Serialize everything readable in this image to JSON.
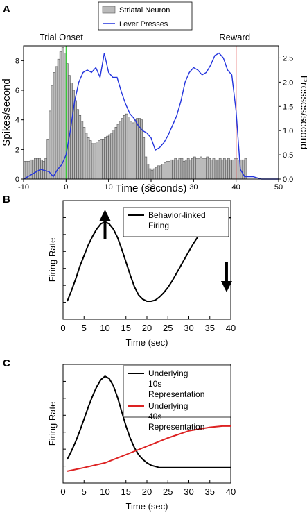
{
  "panels": [
    {
      "letter": "A"
    },
    {
      "letter": "B"
    },
    {
      "letter": "C"
    }
  ],
  "chart_data": [
    {
      "panel": "A",
      "type": "bar",
      "xlabel": "Time (seconds)",
      "ylabel": "Spikes/second",
      "y2label": "Presses/second",
      "xlim": [
        -10,
        50
      ],
      "ylim": [
        0,
        9
      ],
      "y2lim": [
        0,
        2.75
      ],
      "xticks": [
        "-10",
        "0",
        "10",
        "20",
        "30",
        "40",
        "50"
      ],
      "yticks": [
        "0",
        "2",
        "4",
        "6",
        "8"
      ],
      "y2ticks": [
        "0.0",
        "0.5",
        "1.0",
        "1.5",
        "2.0",
        "2.5"
      ],
      "legend_position": "top-center",
      "annotations": [
        {
          "text": "Trial Onset",
          "x": 0,
          "line_color": "#33cc33"
        },
        {
          "text": "Reward",
          "x": 40,
          "line_color": "#dd3333"
        }
      ],
      "series": [
        {
          "name": "Striatal Neuron",
          "kind": "bar",
          "color": "#bbbbbb",
          "bin_width": 1,
          "x_start": -10,
          "values": [
            1.2,
            1.2,
            1.2,
            1.3,
            1.3,
            1.4,
            1.4,
            1.4,
            1.3,
            1.2,
            1.4,
            2.7,
            4.6,
            6.3,
            7.2,
            7.6,
            8.1,
            8.6,
            8.9,
            8.5,
            7.8,
            7.0,
            6.5,
            6.0,
            5.3,
            4.7,
            4.3,
            3.9,
            3.5,
            3.1,
            2.8,
            2.6,
            2.4,
            2.4,
            2.5,
            2.6,
            2.7,
            2.7,
            2.8,
            2.9,
            3.0,
            3.1,
            3.3,
            3.5,
            3.7,
            3.9,
            4.1,
            4.3,
            4.4,
            4.2,
            3.9,
            3.8,
            4.0,
            4.1,
            4.1,
            4.0,
            2.8,
            1.5,
            1.0,
            0.7,
            0.6,
            0.7,
            0.8,
            0.9,
            0.9,
            1.0,
            1.1,
            1.2,
            1.2,
            1.3,
            1.3,
            1.4,
            1.3,
            1.4,
            1.4,
            1.2,
            1.3,
            1.4,
            1.3,
            1.4,
            1.5,
            1.4,
            1.4,
            1.5,
            1.4,
            1.4,
            1.5,
            1.4,
            1.3,
            1.4,
            1.3,
            1.3,
            1.4,
            1.3,
            1.4,
            1.3,
            1.4,
            1.3,
            1.3,
            1.4,
            1.4,
            1.3,
            1.3,
            1.3,
            1.4
          ]
        },
        {
          "name": "Lever Presses",
          "kind": "line",
          "axis": "right",
          "color": "#2233dd",
          "x": [
            -10,
            -8,
            -6,
            -4,
            -3,
            -2,
            -1,
            0,
            1,
            2,
            3,
            4,
            5,
            6,
            7,
            8,
            9,
            10,
            11,
            12,
            13,
            14,
            15,
            16,
            17,
            18,
            19,
            20,
            21,
            22,
            23,
            24,
            25,
            26,
            27,
            28,
            29,
            30,
            31,
            32,
            33,
            34,
            35,
            36,
            37,
            38,
            39,
            40,
            41,
            42,
            44,
            46,
            48,
            50
          ],
          "y": [
            0.0,
            0.1,
            0.2,
            0.15,
            0.05,
            0.2,
            0.3,
            0.5,
            1.0,
            1.6,
            2.0,
            2.2,
            2.25,
            2.2,
            2.3,
            2.1,
            2.6,
            2.2,
            2.1,
            2.1,
            1.8,
            1.55,
            1.35,
            1.25,
            1.1,
            1.0,
            0.95,
            0.85,
            0.6,
            0.65,
            0.75,
            0.9,
            1.1,
            1.3,
            1.6,
            2.0,
            2.2,
            2.3,
            2.25,
            2.15,
            2.2,
            2.35,
            2.55,
            2.6,
            2.5,
            2.25,
            2.15,
            1.4,
            0.2,
            0.05,
            0.05,
            0.0,
            0.0,
            0.0
          ]
        }
      ]
    },
    {
      "panel": "B",
      "type": "line",
      "xlabel": "Time (sec)",
      "ylabel": "Firing Rate",
      "xlim": [
        0,
        40
      ],
      "xticks": [
        "0",
        "5",
        "10",
        "15",
        "20",
        "25",
        "30",
        "35",
        "40"
      ],
      "legend_position": "top-right",
      "annotations": [
        {
          "text": "up-arrow",
          "x": 10
        },
        {
          "text": "down-arrow",
          "x": 39
        }
      ],
      "series": [
        {
          "name": "Behavior-linked Firing",
          "color": "#000000",
          "x": [
            1,
            2,
            3,
            4,
            5,
            6,
            7,
            8,
            9,
            10,
            11,
            12,
            13,
            14,
            15,
            16,
            17,
            18,
            19,
            20,
            21,
            22,
            23,
            24,
            25,
            26,
            27,
            28,
            29,
            30,
            31,
            32,
            33,
            34,
            35,
            36,
            37,
            38,
            39,
            40
          ],
          "y": [
            0.17,
            0.27,
            0.38,
            0.5,
            0.6,
            0.7,
            0.78,
            0.85,
            0.9,
            0.92,
            0.9,
            0.85,
            0.77,
            0.66,
            0.54,
            0.42,
            0.31,
            0.23,
            0.19,
            0.17,
            0.17,
            0.18,
            0.21,
            0.25,
            0.3,
            0.36,
            0.43,
            0.5,
            0.57,
            0.64,
            0.71,
            0.77,
            0.82,
            0.86,
            0.89,
            0.92,
            0.94,
            0.95,
            0.96,
            0.96
          ]
        }
      ]
    },
    {
      "panel": "C",
      "type": "line",
      "xlabel": "Time (sec)",
      "ylabel": "Firing Rate",
      "xlim": [
        0,
        40
      ],
      "xticks": [
        "0",
        "5",
        "10",
        "15",
        "20",
        "25",
        "30",
        "35",
        "40"
      ],
      "legend_position": "top-right",
      "series": [
        {
          "name": "Underlying 10s Representation",
          "color": "#000000",
          "x": [
            1,
            2,
            3,
            4,
            5,
            6,
            7,
            8,
            9,
            10,
            11,
            12,
            13,
            14,
            15,
            16,
            17,
            18,
            19,
            20,
            21,
            22,
            23,
            24,
            25,
            26,
            27,
            28,
            29,
            30,
            31,
            32,
            33,
            34,
            35,
            36,
            37,
            38,
            39,
            40
          ],
          "y": [
            0.2,
            0.27,
            0.35,
            0.44,
            0.54,
            0.64,
            0.73,
            0.81,
            0.87,
            0.9,
            0.88,
            0.82,
            0.72,
            0.6,
            0.48,
            0.38,
            0.3,
            0.24,
            0.2,
            0.17,
            0.15,
            0.14,
            0.13,
            0.13,
            0.13,
            0.13,
            0.13,
            0.13,
            0.13,
            0.13,
            0.13,
            0.13,
            0.13,
            0.13,
            0.13,
            0.13,
            0.13,
            0.13,
            0.13,
            0.13
          ]
        },
        {
          "name": "Underlying 40s Representation",
          "color": "#dd2222",
          "x": [
            1,
            5,
            10,
            15,
            20,
            25,
            30,
            35,
            38,
            40
          ],
          "y": [
            0.1,
            0.13,
            0.17,
            0.24,
            0.31,
            0.38,
            0.44,
            0.47,
            0.48,
            0.48
          ]
        }
      ]
    }
  ]
}
